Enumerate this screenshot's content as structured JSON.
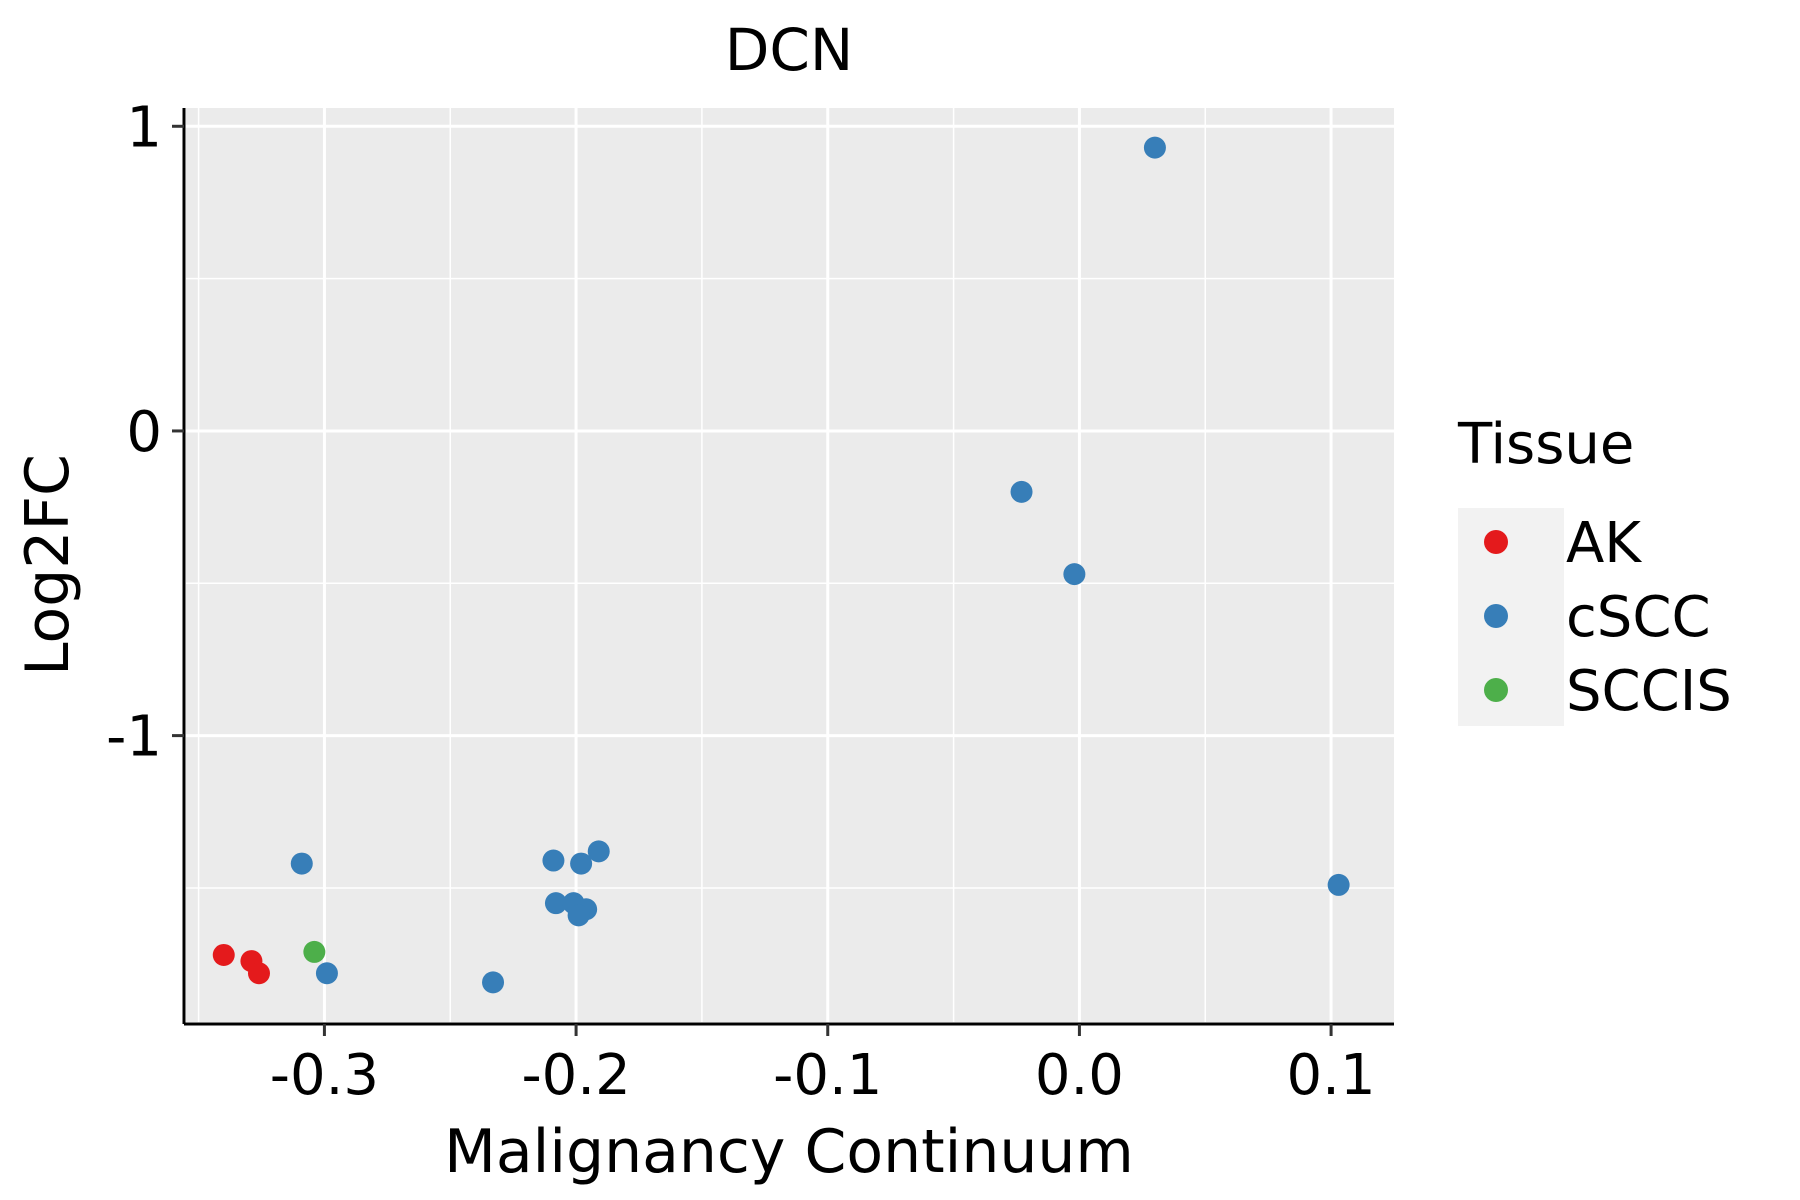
{
  "chart_data": {
    "type": "scatter",
    "title": "DCN",
    "xlabel": "Malignancy Continuum",
    "ylabel": "Log2FC",
    "xlim": [
      -0.355,
      0.125
    ],
    "ylim": [
      -1.94,
      1.06
    ],
    "x_major_ticks": [
      -0.3,
      -0.2,
      -0.1,
      0.0,
      0.1
    ],
    "x_tick_labels": [
      "-0.3",
      "-0.2",
      "-0.1",
      "0.0",
      "0.1"
    ],
    "x_minor_ticks": [
      -0.35,
      -0.25,
      -0.15,
      -0.05,
      0.05
    ],
    "y_major_ticks": [
      1,
      0,
      -1
    ],
    "y_tick_labels": [
      "1",
      "0",
      "-1"
    ],
    "y_minor_ticks": [
      0.5,
      -0.5,
      -1.5
    ],
    "grid": true,
    "legend": {
      "title": "Tissue",
      "position": "right",
      "entries": [
        {
          "label": "AK",
          "color": "#E41A1C"
        },
        {
          "label": "cSCC",
          "color": "#377EB8"
        },
        {
          "label": "SCCIS",
          "color": "#4DAF4A"
        }
      ]
    },
    "series": [
      {
        "name": "AK",
        "color": "#E41A1C",
        "points": [
          [
            -0.34,
            -1.72
          ],
          [
            -0.329,
            -1.74
          ],
          [
            -0.326,
            -1.78
          ]
        ]
      },
      {
        "name": "cSCC",
        "color": "#377EB8",
        "points": [
          [
            0.03,
            0.93
          ],
          [
            -0.023,
            -0.2
          ],
          [
            -0.002,
            -0.47
          ],
          [
            -0.309,
            -1.42
          ],
          [
            -0.299,
            -1.78
          ],
          [
            -0.233,
            -1.81
          ],
          [
            -0.209,
            -1.41
          ],
          [
            -0.198,
            -1.42
          ],
          [
            -0.191,
            -1.38
          ],
          [
            -0.208,
            -1.55
          ],
          [
            -0.201,
            -1.55
          ],
          [
            -0.196,
            -1.57
          ],
          [
            -0.199,
            -1.59
          ],
          [
            0.103,
            -1.49
          ]
        ]
      },
      {
        "name": "SCCIS",
        "color": "#4DAF4A",
        "points": [
          [
            -0.304,
            -1.71
          ]
        ]
      }
    ]
  }
}
